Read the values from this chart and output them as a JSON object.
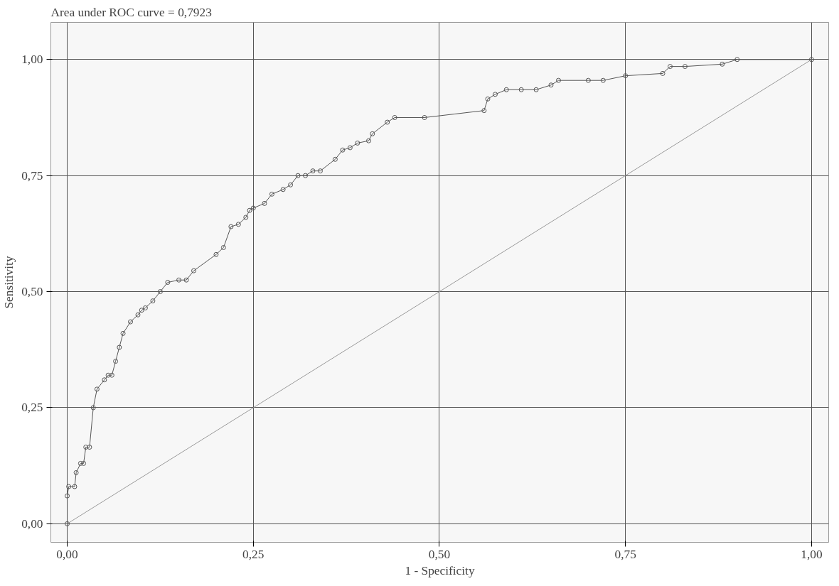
{
  "chart_data": {
    "type": "line",
    "title": "Area under ROC curve = 0,7923",
    "xlabel": "1 - Specificity",
    "ylabel": "Sensitivity",
    "xlim": [
      -0.022,
      1.023
    ],
    "ylim": [
      -0.04,
      1.08
    ],
    "xticks": [
      {
        "value": 0,
        "label": "0,00"
      },
      {
        "value": 0.25,
        "label": "0,25"
      },
      {
        "value": 0.5,
        "label": "0,50"
      },
      {
        "value": 0.75,
        "label": "0,75"
      },
      {
        "value": 1,
        "label": "1,00"
      }
    ],
    "yticks": [
      {
        "value": 0,
        "label": "0,00"
      },
      {
        "value": 0.25,
        "label": "0,25"
      },
      {
        "value": 0.5,
        "label": "0,50"
      },
      {
        "value": 0.75,
        "label": "0,75"
      },
      {
        "value": 1,
        "label": "1,00"
      }
    ],
    "grid": true,
    "marker": "circle",
    "line_style": "solid",
    "series": [
      {
        "color": "#555555",
        "x": [
          0,
          0,
          0.002,
          0.01,
          0.012,
          0.018,
          0.022,
          0.025,
          0.03,
          0.035,
          0.04,
          0.05,
          0.055,
          0.06,
          0.065,
          0.07,
          0.075,
          0.085,
          0.095,
          0.1,
          0.105,
          0.115,
          0.125,
          0.135,
          0.15,
          0.16,
          0.17,
          0.2,
          0.21,
          0.22,
          0.23,
          0.24,
          0.245,
          0.25,
          0.265,
          0.275,
          0.29,
          0.3,
          0.31,
          0.32,
          0.33,
          0.34,
          0.36,
          0.37,
          0.38,
          0.39,
          0.405,
          0.41,
          0.43,
          0.44,
          0.48,
          0.56,
          0.565,
          0.575,
          0.59,
          0.61,
          0.63,
          0.65,
          0.66,
          0.7,
          0.72,
          0.75,
          0.8,
          0.81,
          0.83,
          0.88,
          0.9,
          1.0
        ],
        "values": [
          0,
          0.06,
          0.08,
          0.08,
          0.11,
          0.13,
          0.13,
          0.165,
          0.165,
          0.25,
          0.29,
          0.31,
          0.32,
          0.32,
          0.35,
          0.38,
          0.41,
          0.435,
          0.45,
          0.46,
          0.465,
          0.48,
          0.5,
          0.52,
          0.525,
          0.525,
          0.545,
          0.58,
          0.595,
          0.64,
          0.645,
          0.66,
          0.675,
          0.68,
          0.69,
          0.71,
          0.72,
          0.73,
          0.75,
          0.75,
          0.76,
          0.76,
          0.785,
          0.805,
          0.81,
          0.82,
          0.825,
          0.84,
          0.865,
          0.875,
          0.875,
          0.89,
          0.915,
          0.925,
          0.935,
          0.935,
          0.935,
          0.945,
          0.955,
          0.955,
          0.955,
          0.965,
          0.97,
          0.985,
          0.985,
          0.99,
          1.0,
          1.0
        ]
      },
      {
        "color": "#999999",
        "marker": "none",
        "x": [
          0,
          1
        ],
        "values": [
          0,
          1
        ]
      }
    ]
  }
}
